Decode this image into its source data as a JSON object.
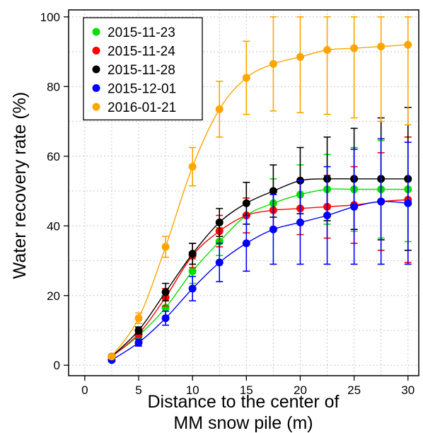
{
  "chart_data": {
    "type": "line",
    "xlabel": "Distance to the center of MM snow pile (m)",
    "ylabel": "Water recovery rate (%)",
    "xlim": [
      -1.5,
      31
    ],
    "ylim": [
      -3,
      102
    ],
    "x_ticks": [
      0,
      5,
      10,
      15,
      20,
      25,
      30
    ],
    "y_ticks": [
      0,
      20,
      40,
      60,
      80,
      100
    ],
    "grid": true,
    "legend_position": "top-left",
    "x": [
      2.5,
      5,
      7.5,
      10,
      12.5,
      15,
      17.5,
      20,
      22.5,
      25,
      27.5,
      30
    ],
    "series": [
      {
        "name": "2015-11-23",
        "color": "#00e000",
        "values": [
          2.5,
          8.5,
          16.5,
          27,
          35.5,
          43,
          46.5,
          49,
          50.5,
          50.5,
          50.5,
          50.5
        ],
        "error": [
          0.5,
          1,
          2.5,
          3.5,
          4,
          5,
          7,
          8.5,
          10,
          12,
          14,
          15
        ]
      },
      {
        "name": "2015-11-24",
        "color": "#ff0000",
        "values": [
          2.5,
          9,
          19.5,
          31.5,
          38.5,
          43,
          44.5,
          45,
          45.5,
          46,
          47,
          47.5
        ],
        "error": [
          0.5,
          1,
          2.5,
          3.5,
          4.5,
          5,
          6,
          7.5,
          9,
          11,
          14,
          18
        ]
      },
      {
        "name": "2015-11-28",
        "color": "#000000",
        "values": [
          2.5,
          10,
          21,
          32,
          41,
          46.5,
          50,
          53,
          53.5,
          53.5,
          53.5,
          53.5
        ],
        "error": [
          0.5,
          1,
          2.5,
          3,
          4,
          6,
          7.5,
          9.5,
          12,
          14.5,
          17.5,
          20.5
        ]
      },
      {
        "name": "2015-12-01",
        "color": "#0000ff",
        "values": [
          1.5,
          6.5,
          13.5,
          22,
          29.5,
          35,
          39,
          41,
          43,
          45.5,
          47,
          46.5
        ],
        "error": [
          0.5,
          1,
          2,
          3.5,
          5.5,
          8,
          10,
          12,
          14,
          16.5,
          18,
          17.5
        ]
      },
      {
        "name": "2016-01-21",
        "color": "#ffa500",
        "values": [
          2.5,
          13.5,
          34,
          57,
          73.5,
          82.5,
          86.5,
          88.5,
          90.5,
          91,
          91.5,
          92
        ],
        "error": [
          0.5,
          1.5,
          3,
          5.5,
          8,
          10.5,
          13.5,
          16,
          18.5,
          20,
          21.5,
          23
        ]
      }
    ]
  }
}
